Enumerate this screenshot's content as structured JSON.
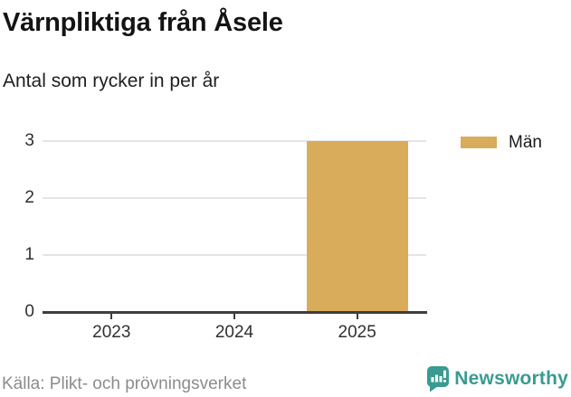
{
  "chart_data": {
    "type": "bar",
    "title": "Värnpliktiga från Åsele",
    "subtitle": "Antal som rycker in per år",
    "categories": [
      "2023",
      "2024",
      "2025"
    ],
    "series": [
      {
        "name": "Män",
        "color": "#d9ac5b",
        "values": [
          0,
          0,
          3
        ]
      }
    ],
    "ylim": [
      0,
      3
    ],
    "yticks": [
      0,
      1,
      2,
      3
    ],
    "grid": true,
    "legend_position": "top-right",
    "source": "Källa: Plikt- och prövningsverket"
  },
  "footer": {
    "brand_name": "Newsworthy",
    "brand_icon": "bar-chart-speech-bubble-icon",
    "brand_color": "#399b91"
  },
  "colors": {
    "bar": "#d9ac5b",
    "grid": "#e5e5e5",
    "axis": "#3e3e3e",
    "title_text": "#141414",
    "muted_text": "#8c8c8c",
    "brand_teal": "#399b91"
  }
}
